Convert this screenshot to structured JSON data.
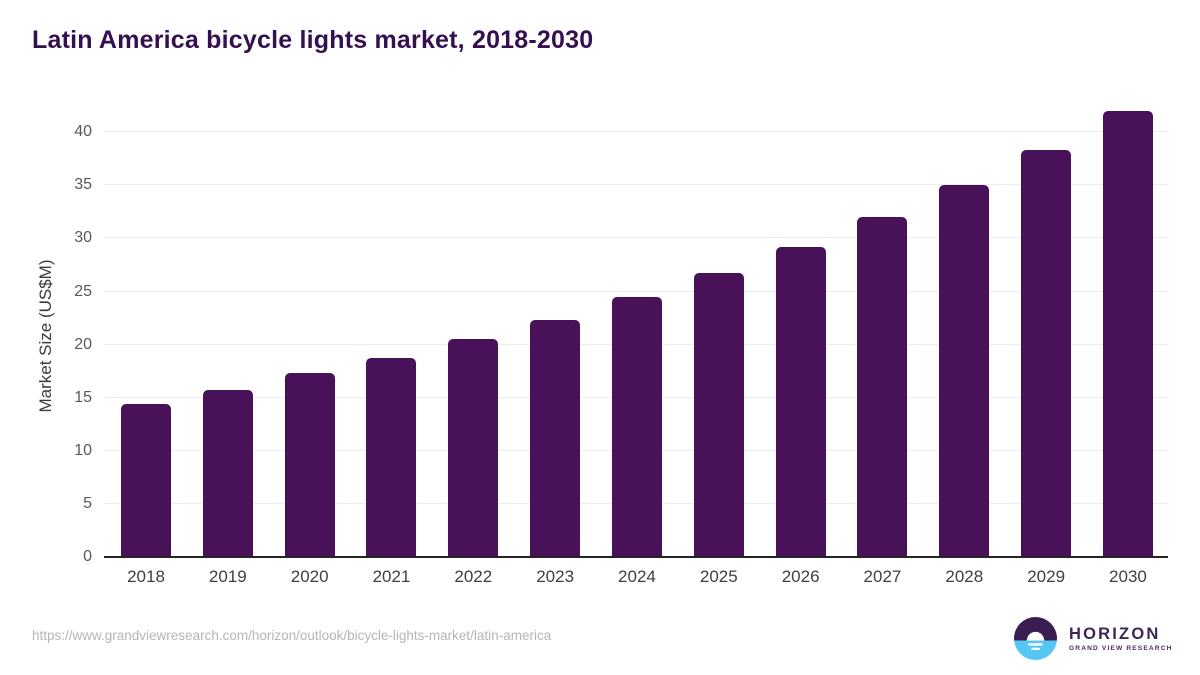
{
  "header": {
    "title": "Latin America bicycle lights market, 2018-2030"
  },
  "chart_data": {
    "type": "bar",
    "title": "Latin America bicycle lights market, 2018-2030",
    "categories": [
      "2018",
      "2019",
      "2020",
      "2021",
      "2022",
      "2023",
      "2024",
      "2025",
      "2026",
      "2027",
      "2028",
      "2029",
      "2030"
    ],
    "values": [
      14.4,
      15.7,
      17.3,
      18.7,
      20.5,
      22.3,
      24.5,
      26.7,
      29.2,
      32.0,
      35.0,
      38.3,
      42.0
    ],
    "xlabel": "",
    "ylabel": "Market Size (US$M)",
    "ylim": [
      0,
      42.5
    ],
    "yticks": [
      0,
      5,
      10,
      15,
      20,
      25,
      30,
      35,
      40
    ],
    "bar_color": "#491158",
    "grid": "horizontal",
    "legend": "none"
  },
  "colors": {
    "title_text": "#351050",
    "bar": "#491158",
    "gridline": "#ececec",
    "axis_line": "#242424",
    "ytick_text": "#595959",
    "xtick_text": "#3f3f3f",
    "url_text": "#b5b5b5",
    "logo_purple": "#3a1e52",
    "logo_blue": "#56c7f2"
  },
  "footer": {
    "source_url": "https://www.grandviewresearch.com/horizon/outlook/bicycle-lights-market/latin-america"
  },
  "logo": {
    "name": "HORIZON",
    "subtitle": "GRAND VIEW RESEARCH"
  }
}
